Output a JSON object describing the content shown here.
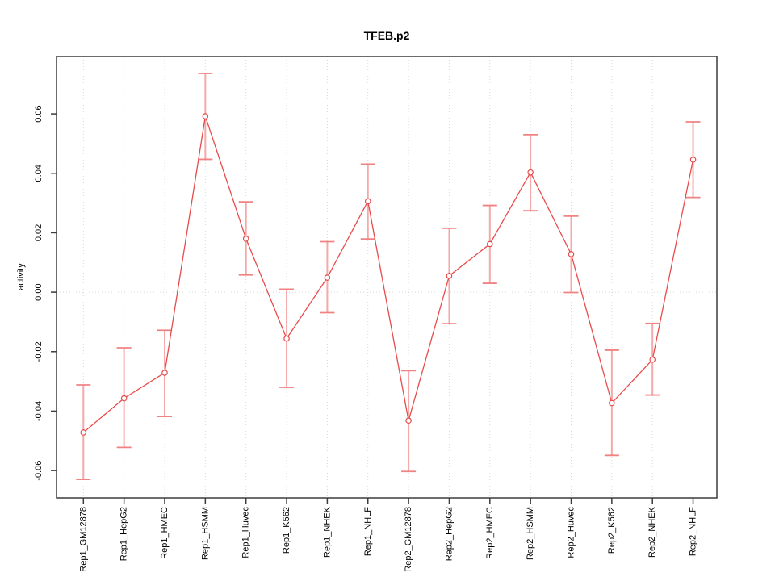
{
  "title": "TFEB.p2",
  "ylabel": "activity",
  "chart_data": {
    "type": "line",
    "title": "TFEB.p2",
    "xlabel": "",
    "ylabel": "activity",
    "categories": [
      "Rep1_GM12878",
      "Rep1_HepG2",
      "Rep1_HMEC",
      "Rep1_HSMM",
      "Rep1_Huvec",
      "Rep1_K562",
      "Rep1_NHEK",
      "Rep1_NHLF",
      "Rep2_GM12878",
      "Rep2_HepG2",
      "Rep2_HMEC",
      "Rep2_HSMM",
      "Rep2_Huvec",
      "Rep2_K562",
      "Rep2_NHEK",
      "Rep2_NHLF"
    ],
    "series": [
      {
        "name": "activity",
        "values": [
          -0.0472,
          -0.0357,
          -0.0271,
          0.0592,
          0.018,
          -0.0156,
          0.0049,
          0.0306,
          -0.0432,
          0.0055,
          0.0162,
          0.0403,
          0.0128,
          -0.0373,
          -0.0227,
          0.0446
        ]
      }
    ],
    "error_bars": {
      "lower": [
        -0.063,
        -0.0522,
        -0.0418,
        0.0447,
        0.0058,
        -0.032,
        -0.0069,
        0.0179,
        -0.0603,
        -0.0106,
        0.003,
        0.0274,
        -0.0001,
        -0.0549,
        -0.0346,
        0.0319
      ],
      "upper": [
        -0.0312,
        -0.0187,
        -0.0128,
        0.0736,
        0.0304,
        0.001,
        0.017,
        0.0431,
        -0.0264,
        0.0215,
        0.0292,
        0.053,
        0.0256,
        -0.0195,
        -0.0105,
        0.0573
      ]
    },
    "ylim": [
      -0.0692,
      0.0793
    ],
    "yticks": [
      -0.06,
      -0.04,
      -0.02,
      0,
      0.02,
      0.04,
      0.06
    ],
    "grid": "vertical dotted line at each category; horizontal dotted line at y=0",
    "legend": "none",
    "marker": "open-circle",
    "colors": {
      "line": "#e84b4b",
      "marker_stroke": "#e84b4b",
      "marker_fill": "#ffffff",
      "error_bar": "#f5a9a9",
      "error_cap": "#f08282",
      "grid": "#d8d8d8",
      "box": "#3c3c3c",
      "text": "#000000"
    }
  }
}
